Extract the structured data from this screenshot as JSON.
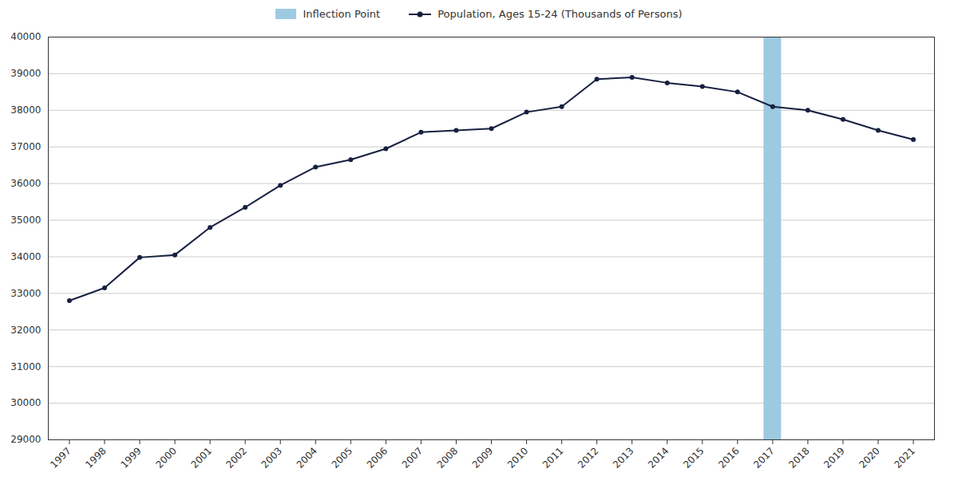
{
  "chart_data": {
    "type": "line",
    "x": [
      1997,
      1998,
      1999,
      2000,
      2001,
      2002,
      2003,
      2004,
      2005,
      2006,
      2007,
      2008,
      2009,
      2010,
      2011,
      2012,
      2013,
      2014,
      2015,
      2016,
      2017,
      2018,
      2019,
      2020,
      2021
    ],
    "series": [
      {
        "name": "Population, Ages 15-24 (Thousands of Persons)",
        "color": "#162040",
        "marker": "circle",
        "values": [
          32800,
          33150,
          33980,
          34050,
          34800,
          35350,
          35950,
          36450,
          36650,
          36950,
          37400,
          37450,
          37500,
          37950,
          38100,
          38850,
          38900,
          38750,
          38650,
          38500,
          38100,
          38000,
          37750,
          37450,
          37200
        ]
      }
    ],
    "bands": [
      {
        "name": "Inflection Point",
        "color": "#9ecae1",
        "x": [
          2016.75,
          2017.25
        ]
      }
    ],
    "xlim": [
      1996.4,
      2021.6
    ],
    "xticks": [
      1997,
      1998,
      1999,
      2000,
      2001,
      2002,
      2003,
      2004,
      2005,
      2006,
      2007,
      2008,
      2009,
      2010,
      2011,
      2012,
      2013,
      2014,
      2015,
      2016,
      2017,
      2018,
      2019,
      2020,
      2021
    ],
    "ylim": [
      29000,
      40000
    ],
    "yticks": [
      29000,
      30000,
      31000,
      32000,
      33000,
      34000,
      35000,
      36000,
      37000,
      38000,
      39000,
      40000
    ],
    "grid": true,
    "legend": "top"
  }
}
